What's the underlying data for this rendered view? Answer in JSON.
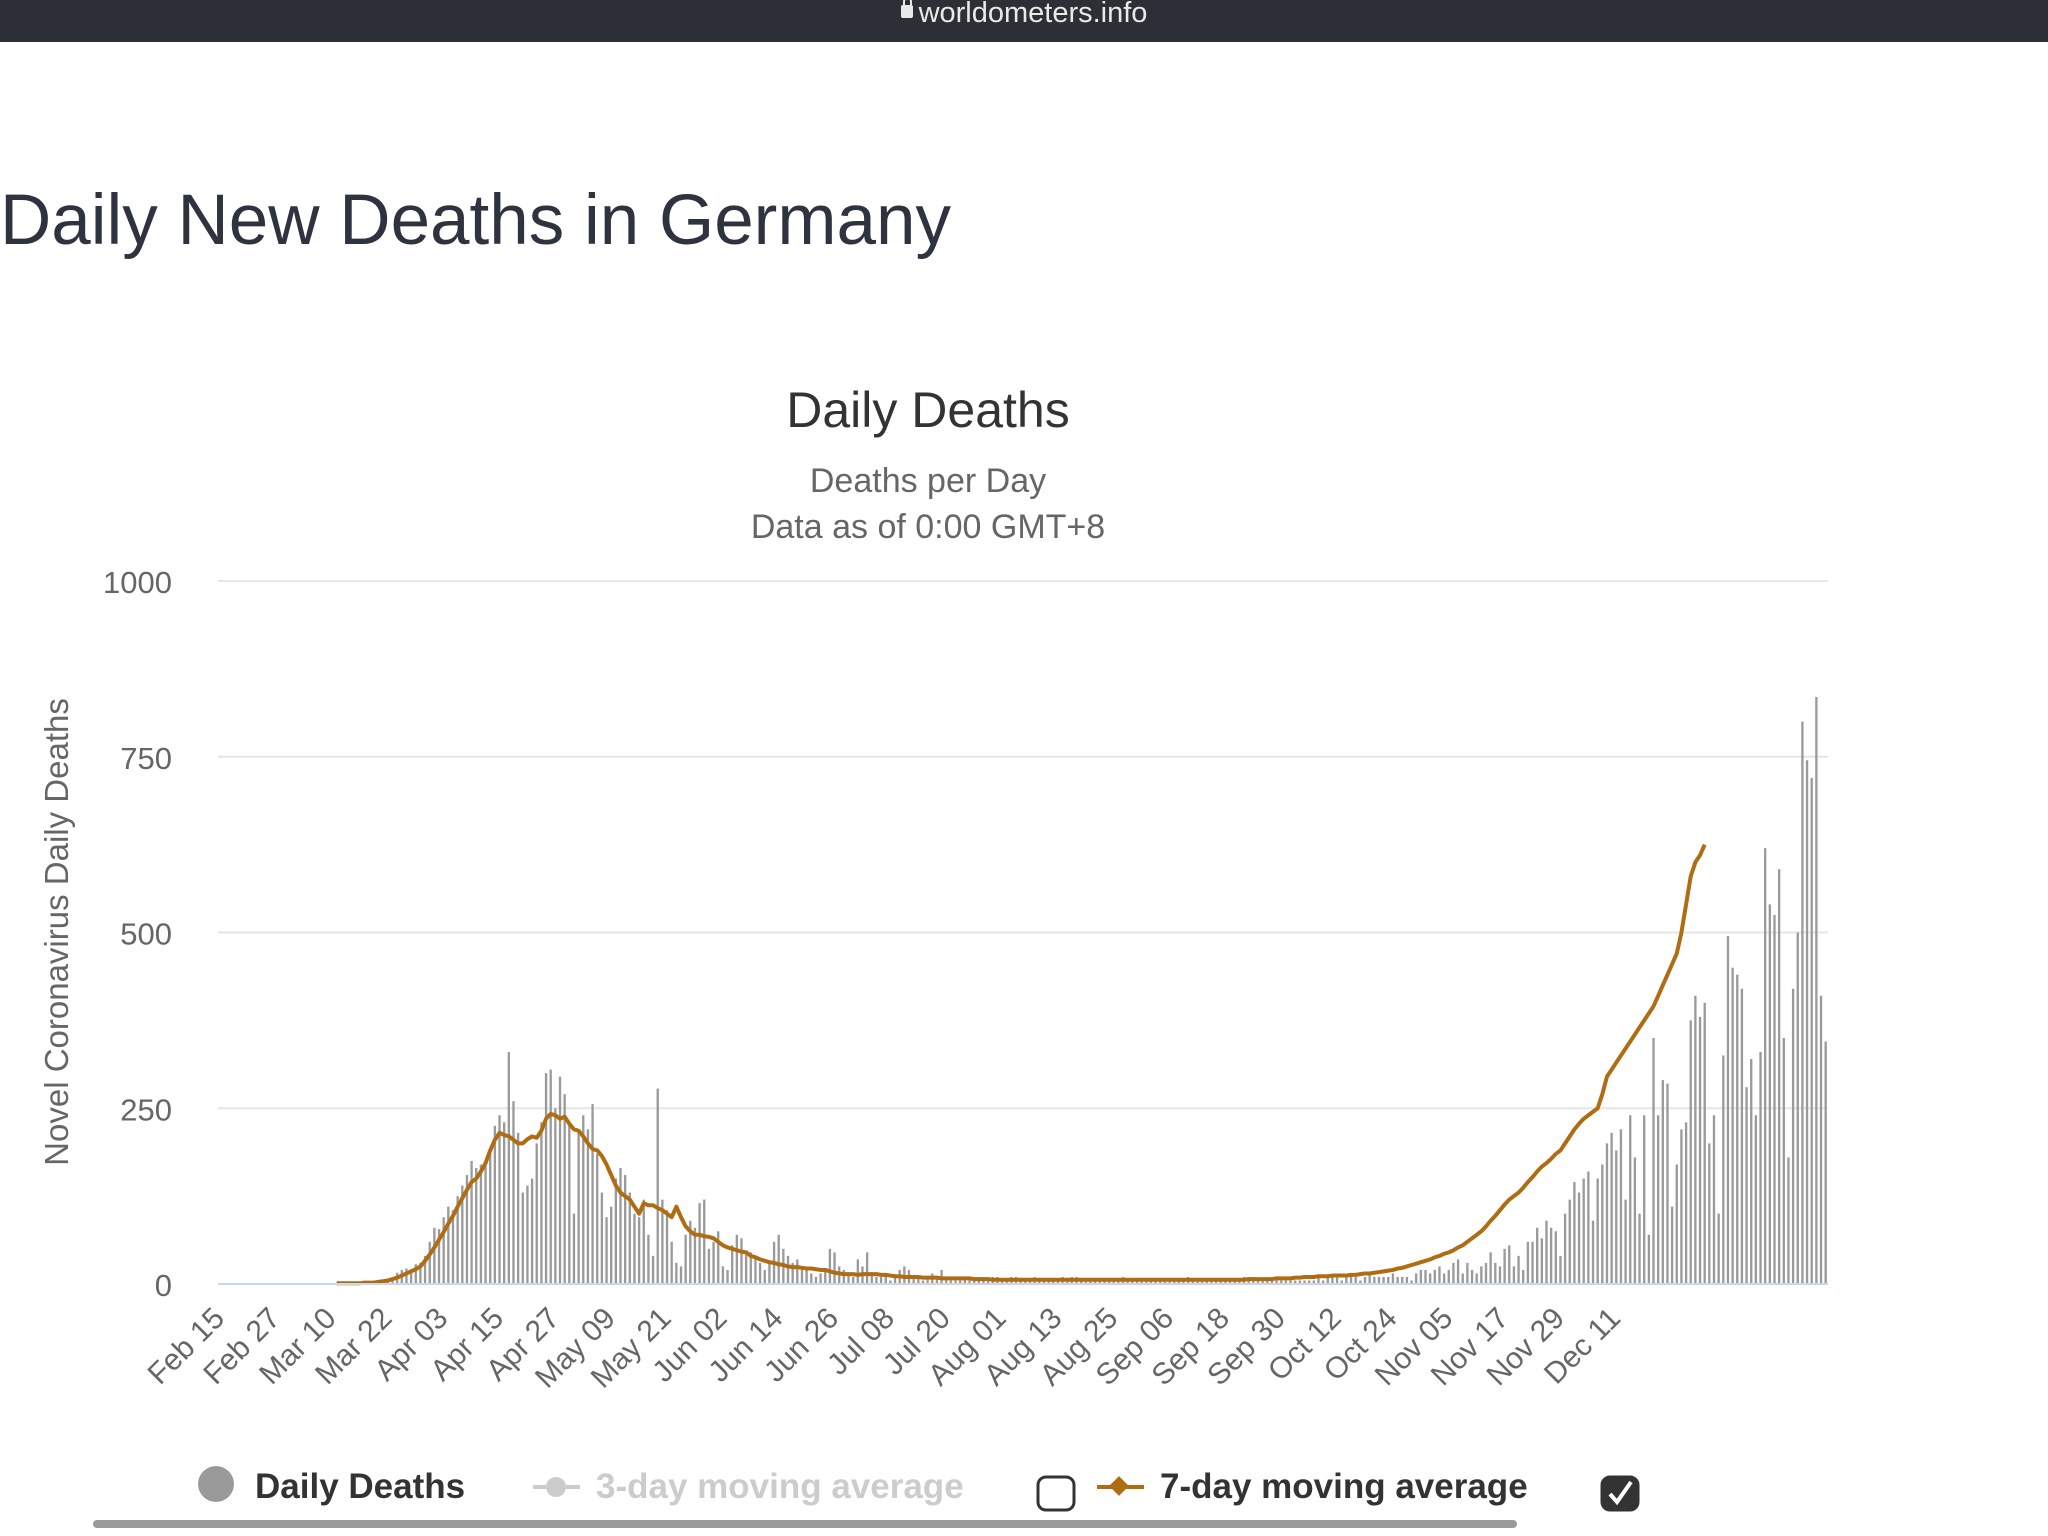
{
  "browser": {
    "url": "worldometers.info"
  },
  "page": {
    "title": "Daily New Deaths in Germany"
  },
  "colors": {
    "bars": "#9a9a9a",
    "ma7": "#b06c13",
    "ma3_disabled": "#cccccc",
    "grid": "#e6e6e6",
    "text": "#333333"
  },
  "legend": [
    {
      "label": "Daily Deaths",
      "icon": "circle-icon",
      "enabled": true
    },
    {
      "label": "3-day moving average",
      "icon": "line-marker-icon",
      "enabled": false
    },
    {
      "label": "7-day moving average",
      "icon": "line-diamond-icon",
      "enabled": true
    }
  ],
  "chart_data": {
    "type": "bar",
    "title": "Daily Deaths",
    "subtitle": [
      "Deaths per Day",
      "Data as of 0:00 GMT+8"
    ],
    "ylabel": "Novel Coronavirus Daily Deaths",
    "ylim": [
      0,
      1000
    ],
    "yticks": [
      "0",
      "250",
      "500",
      "750",
      "1000"
    ],
    "xticks": [
      "Feb 15",
      "Feb 27",
      "Mar 10",
      "Mar 22",
      "Apr 03",
      "Apr 15",
      "Apr 27",
      "May 09",
      "May 21",
      "Jun 02",
      "Jun 14",
      "Jun 26",
      "Jul 08",
      "Jul 20",
      "Aug 01",
      "Aug 13",
      "Aug 25",
      "Sep 06",
      "Sep 18",
      "Sep 30",
      "Oct 12",
      "Oct 24",
      "Nov 05",
      "Nov 17",
      "Nov 29",
      "Dec 11"
    ],
    "grid": true,
    "legend_position": "bottom",
    "x_start": "Feb 15",
    "x_end": "Dec 20",
    "daily_deaths": [
      0,
      0,
      0,
      0,
      0,
      0,
      0,
      0,
      0,
      0,
      0,
      0,
      0,
      0,
      0,
      0,
      0,
      0,
      0,
      0,
      0,
      0,
      0,
      0,
      0,
      1,
      0,
      0,
      1,
      0,
      2,
      1,
      3,
      1,
      2,
      5,
      5,
      8,
      16,
      20,
      22,
      18,
      28,
      30,
      40,
      60,
      80,
      78,
      95,
      110,
      105,
      125,
      140,
      155,
      175,
      165,
      170,
      168,
      190,
      225,
      240,
      230,
      330,
      260,
      215,
      130,
      140,
      150,
      200,
      230,
      300,
      305,
      250,
      295,
      270,
      225,
      100,
      220,
      240,
      220,
      256,
      185,
      130,
      95,
      110,
      150,
      165,
      155,
      130,
      100,
      95,
      120,
      70,
      40,
      278,
      120,
      105,
      60,
      30,
      25,
      70,
      90,
      80,
      115,
      120,
      50,
      60,
      75,
      25,
      20,
      55,
      70,
      65,
      45,
      45,
      40,
      30,
      20,
      30,
      60,
      70,
      50,
      40,
      30,
      35,
      25,
      20,
      15,
      10,
      15,
      20,
      50,
      45,
      25,
      20,
      15,
      10,
      35,
      25,
      45,
      15,
      10,
      10,
      15,
      5,
      10,
      20,
      25,
      20,
      10,
      10,
      5,
      10,
      15,
      10,
      20,
      10,
      5,
      5,
      5,
      10,
      5,
      5,
      10,
      5,
      5,
      10,
      10,
      5,
      5,
      10,
      10,
      5,
      5,
      5,
      10,
      5,
      5,
      5,
      5,
      5,
      10,
      5,
      10,
      10,
      5,
      5,
      5,
      5,
      5,
      5,
      5,
      5,
      5,
      10,
      5,
      5,
      5,
      5,
      5,
      5,
      5,
      5,
      5,
      5,
      5,
      5,
      5,
      10,
      5,
      5,
      5,
      5,
      5,
      5,
      5,
      5,
      5,
      5,
      5,
      10,
      5,
      10,
      5,
      5,
      5,
      5,
      5,
      5,
      5,
      5,
      5,
      5,
      5,
      5,
      5,
      10,
      5,
      10,
      10,
      10,
      5,
      10,
      15,
      10,
      5,
      10,
      15,
      10,
      10,
      10,
      10,
      15,
      10,
      10,
      10,
      5,
      15,
      20,
      20,
      15,
      20,
      25,
      15,
      20,
      30,
      35,
      15,
      30,
      20,
      15,
      25,
      30,
      45,
      30,
      25,
      50,
      55,
      25,
      40,
      20,
      60,
      60,
      80,
      65,
      90,
      80,
      75,
      40,
      100,
      120,
      145,
      130,
      150,
      160,
      90,
      150,
      170,
      200,
      215,
      190,
      220,
      120,
      240,
      180,
      100,
      240,
      70,
      350,
      240,
      290,
      285,
      110,
      170,
      220,
      230,
      375,
      410,
      380,
      400,
      200,
      240,
      100,
      325,
      495,
      450,
      440,
      420,
      280,
      320,
      240,
      330,
      620,
      540,
      525,
      590,
      350,
      180,
      420,
      500,
      800,
      745,
      720,
      835,
      410,
      345
    ],
    "moving_avg_7day": [
      0,
      0,
      0,
      0,
      0,
      0,
      0,
      0,
      0,
      0,
      0,
      0,
      0,
      0,
      0,
      0,
      0,
      0,
      0,
      0,
      0,
      0,
      0,
      0,
      0,
      1,
      1,
      1,
      1,
      1,
      1,
      2,
      2,
      2,
      3,
      4,
      5,
      7,
      9,
      12,
      15,
      18,
      21,
      25,
      33,
      42,
      52,
      63,
      74,
      86,
      97,
      110,
      122,
      134,
      145,
      150,
      160,
      172,
      190,
      205,
      215,
      212,
      210,
      205,
      200,
      200,
      206,
      210,
      208,
      218,
      235,
      242,
      240,
      235,
      238,
      228,
      220,
      218,
      210,
      200,
      192,
      190,
      182,
      170,
      155,
      140,
      130,
      125,
      120,
      110,
      100,
      115,
      112,
      112,
      108,
      105,
      100,
      95,
      110,
      95,
      82,
      75,
      70,
      70,
      68,
      67,
      65,
      60,
      55,
      52,
      50,
      48,
      46,
      45,
      40,
      38,
      35,
      33,
      31,
      30,
      28,
      27,
      25,
      24,
      24,
      23,
      22,
      22,
      21,
      20,
      20,
      18,
      16,
      15,
      14,
      14,
      14,
      13,
      14,
      14,
      14,
      14,
      13,
      13,
      12,
      11,
      11,
      10,
      10,
      10,
      10,
      9,
      9,
      9,
      9,
      8,
      8,
      8,
      8,
      8,
      8,
      8,
      7,
      7,
      7,
      7,
      6,
      6,
      6,
      6,
      6,
      6,
      6,
      6,
      6,
      6,
      6,
      6,
      6,
      6,
      6,
      6,
      6,
      6,
      6,
      6,
      6,
      6,
      6,
      6,
      6,
      6,
      6,
      6,
      6,
      6,
      6,
      6,
      6,
      6,
      6,
      6,
      6,
      6,
      6,
      6,
      6,
      6,
      6,
      6,
      6,
      6,
      6,
      6,
      6,
      6,
      6,
      6,
      6,
      6,
      6,
      7,
      7,
      7,
      7,
      7,
      7,
      8,
      8,
      8,
      8,
      9,
      9,
      10,
      10,
      10,
      11,
      11,
      11,
      12,
      12,
      12,
      12,
      13,
      13,
      14,
      15,
      15,
      16,
      17,
      18,
      19,
      20,
      22,
      23,
      25,
      27,
      29,
      31,
      33,
      35,
      38,
      40,
      43,
      45,
      48,
      52,
      55,
      60,
      65,
      70,
      75,
      82,
      90,
      97,
      105,
      113,
      120,
      125,
      130,
      137,
      145,
      152,
      160,
      167,
      172,
      178,
      185,
      190,
      200,
      210,
      220,
      228,
      235,
      240,
      245,
      250,
      270,
      295,
      305,
      315,
      325,
      335,
      345,
      355,
      365,
      375,
      385,
      395,
      410,
      425,
      440,
      455,
      470,
      500,
      540,
      580,
      600,
      610,
      625
    ]
  }
}
